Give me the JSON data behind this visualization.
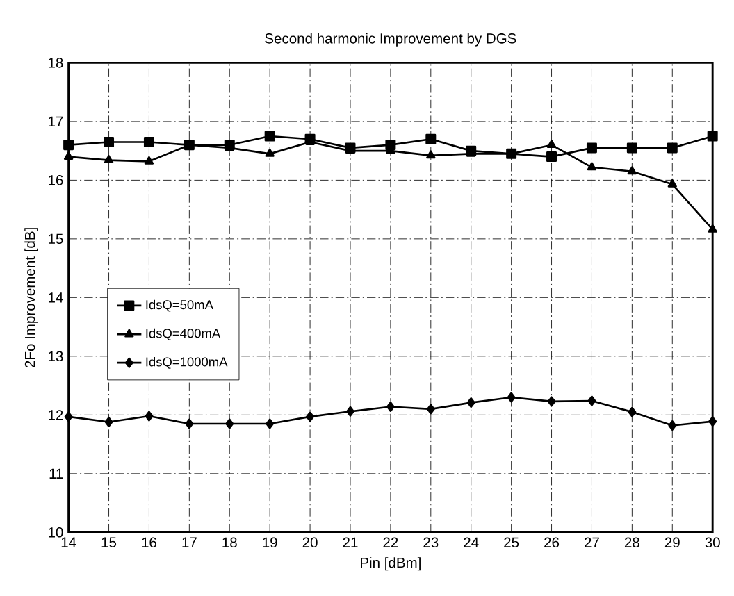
{
  "chart_data": {
    "type": "line",
    "title": "Second harmonic Improvement by DGS",
    "xlabel": "Pin [dBm]",
    "ylabel": "2Fo Improvement [dB]",
    "x": [
      14,
      15,
      16,
      17,
      18,
      19,
      20,
      21,
      22,
      23,
      24,
      25,
      26,
      27,
      28,
      29,
      30
    ],
    "series": [
      {
        "name": "IdsQ=50mA",
        "color": "#000000",
        "marker": "square",
        "values": [
          16.6,
          16.65,
          16.65,
          16.6,
          16.6,
          16.75,
          16.7,
          16.55,
          16.6,
          16.7,
          16.5,
          16.45,
          16.4,
          16.55,
          16.55,
          16.55,
          16.75
        ]
      },
      {
        "name": "IdsQ=400mA",
        "color": "#000000",
        "marker": "triangle",
        "values": [
          16.4,
          16.34,
          16.32,
          16.6,
          16.55,
          16.45,
          16.65,
          16.5,
          16.5,
          16.42,
          16.45,
          16.45,
          16.6,
          16.22,
          16.15,
          15.93,
          15.16
        ]
      },
      {
        "name": "IdsQ=1000mA",
        "color": "#000000",
        "marker": "diamond",
        "values": [
          11.97,
          11.88,
          11.98,
          11.85,
          11.85,
          11.85,
          11.97,
          12.06,
          12.14,
          12.1,
          12.21,
          12.3,
          12.23,
          12.24,
          12.05,
          11.82,
          11.89
        ]
      }
    ],
    "xlim": [
      14,
      30
    ],
    "ylim": [
      10,
      18
    ],
    "xticks": [
      14,
      15,
      16,
      17,
      18,
      19,
      20,
      21,
      22,
      23,
      24,
      25,
      26,
      27,
      28,
      29,
      30
    ],
    "yticks": [
      10,
      11,
      12,
      13,
      14,
      15,
      16,
      17,
      18
    ],
    "grid": true,
    "legend": "left"
  }
}
